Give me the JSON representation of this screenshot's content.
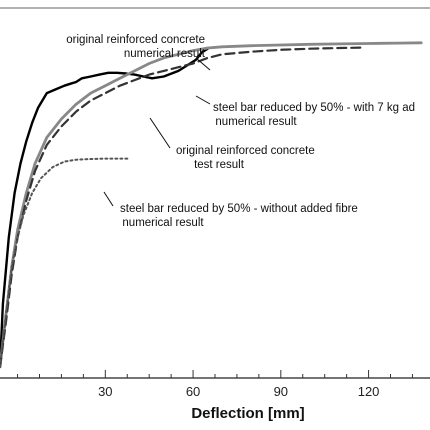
{
  "chart_data": {
    "type": "line",
    "xlabel": "Deflection [mm]",
    "ylabel": "",
    "title": "",
    "xlim": [
      -6,
      141
    ],
    "ylim": [
      0,
      100
    ],
    "xticks": [
      30,
      60,
      90,
      120
    ],
    "grid": false,
    "legend": "none",
    "series": [
      {
        "key": "test",
        "color": "#000000",
        "style": "solid",
        "x": [
          -6,
          -5,
          -3,
          -1,
          1,
          3,
          5,
          7,
          10,
          13,
          16,
          18,
          20,
          22,
          25,
          28,
          31,
          34,
          37,
          40,
          43,
          46,
          50,
          55,
          58,
          61,
          63,
          65
        ],
        "y": [
          3,
          20,
          38,
          50,
          58,
          64,
          69,
          73,
          77,
          78,
          79,
          79.5,
          80,
          81,
          81.5,
          82,
          82.5,
          82.5,
          82.3,
          82,
          81.5,
          81,
          81.5,
          83,
          84.5,
          86,
          88,
          89
        ]
      },
      {
        "key": "orig_num",
        "color": "#888888",
        "style": "solid",
        "x": [
          -6,
          -4,
          -2,
          0,
          3,
          6,
          10,
          15,
          20,
          25,
          30,
          35,
          40,
          45,
          50,
          55,
          60,
          65,
          70,
          80,
          90,
          100,
          110,
          120,
          130,
          138
        ],
        "y": [
          3,
          17,
          30,
          40,
          50,
          58,
          65,
          70,
          74,
          77,
          79,
          81,
          83,
          85,
          86.5,
          87.5,
          88.5,
          89.2,
          89.5,
          89.8,
          90,
          90.2,
          90.3,
          90.4,
          90.5,
          90.6
        ]
      },
      {
        "key": "reduced_fibre",
        "color": "#333333",
        "style": "dashed",
        "x": [
          -6,
          -4,
          -2,
          0,
          3,
          6,
          10,
          15,
          20,
          25,
          30,
          35,
          40,
          45,
          50,
          55,
          60,
          65,
          70,
          80,
          90,
          100,
          110,
          118
        ],
        "y": [
          3,
          15,
          28,
          38,
          48,
          56,
          63,
          68,
          72,
          75,
          77,
          79,
          80.5,
          82,
          83,
          84,
          85,
          86.5,
          87.5,
          88.2,
          88.7,
          89,
          89.2,
          89.3
        ]
      },
      {
        "key": "reduced_nofibre",
        "color": "#555555",
        "style": "dotted",
        "x": [
          -6,
          -4,
          -2,
          0,
          2,
          5,
          8,
          12,
          16,
          20,
          25,
          30,
          35,
          38
        ],
        "y": [
          3,
          17,
          30,
          38,
          44,
          50,
          54,
          57,
          58.5,
          59,
          59.2,
          59.3,
          59.3,
          59.3
        ]
      }
    ],
    "annotations": [
      {
        "lines": [
          "original reinforced concrete",
          "numerical result"
        ]
      },
      {
        "lines": [
          "steel bar reduced by 50% - with 7 kg ad",
          "numerical result"
        ]
      },
      {
        "lines": [
          "original reinforced concrete",
          "test result"
        ]
      },
      {
        "lines": [
          "steel bar reduced by 50% - without added fibre",
          "numerical result"
        ]
      }
    ]
  }
}
